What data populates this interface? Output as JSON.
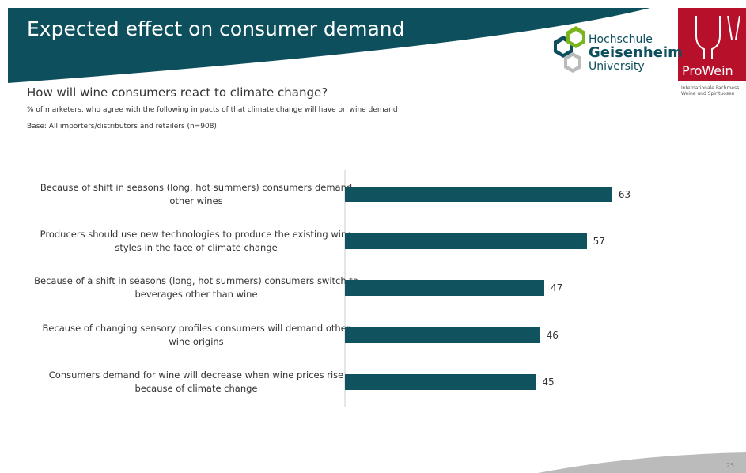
{
  "header": {
    "title": "Expected effect on consumer demand",
    "logo_hochschule": [
      "Hochschule",
      "Geisenheim",
      "University"
    ],
    "logo_prowein": "ProWein",
    "logo_prowein_sub": [
      "Internationale Fachmess",
      "Weine und Spirituosen"
    ]
  },
  "chart_data": {
    "type": "bar",
    "orientation": "horizontal",
    "title": "How will wine consumers react to climate change?",
    "subtitle": "% of marketers,  who agree with the following impacts of that climate change will have on wine demand",
    "note": "Base: All importers/distributors  and retailers  (n=908)",
    "categories": [
      "Because of shift in seasons (long, hot summers) consumers demand other wines",
      "Producers should use new technologies to produce the existing wine styles in the face of climate change",
      "Because of a shift in seasons (long, hot summers) consumers switch to beverages other than wine",
      "Because of changing sensory profiles consumers will demand other wine origins",
      "Consumers demand for wine will decrease when wine prices rise because of climate change"
    ],
    "values": [
      63,
      57,
      47,
      46,
      45
    ],
    "color": "#10535f",
    "xlim": [
      0,
      80
    ]
  },
  "footer": {
    "page": "25"
  }
}
